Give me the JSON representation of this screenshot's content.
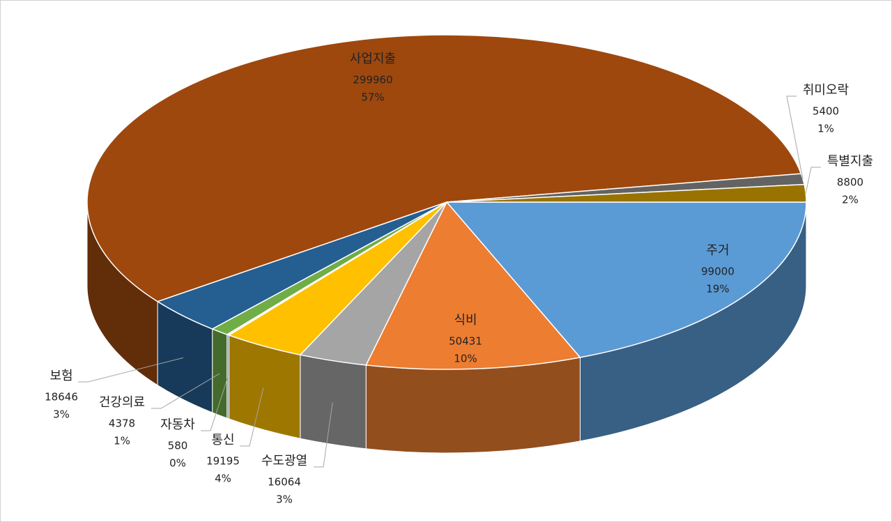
{
  "chart_data": {
    "type": "pie3d",
    "categories": [
      "주거",
      "식비",
      "수도광열",
      "통신",
      "자동차",
      "건강의료",
      "보험",
      "사업지출",
      "취미오락",
      "특별지출"
    ],
    "values": [
      99000,
      50431,
      16064,
      19195,
      580,
      4378,
      18646,
      299960,
      5400,
      8800
    ],
    "percent_labels": [
      "19%",
      "10%",
      "3%",
      "4%",
      "0%",
      "1%",
      "3%",
      "57%",
      "1%",
      "2%"
    ],
    "colors": [
      "#5b9bd5",
      "#ed7d31",
      "#a5a5a5",
      "#ffc000",
      "#d9e6f5",
      "#70ad47",
      "#255e91",
      "#9e480e",
      "#636363",
      "#997300"
    ]
  }
}
